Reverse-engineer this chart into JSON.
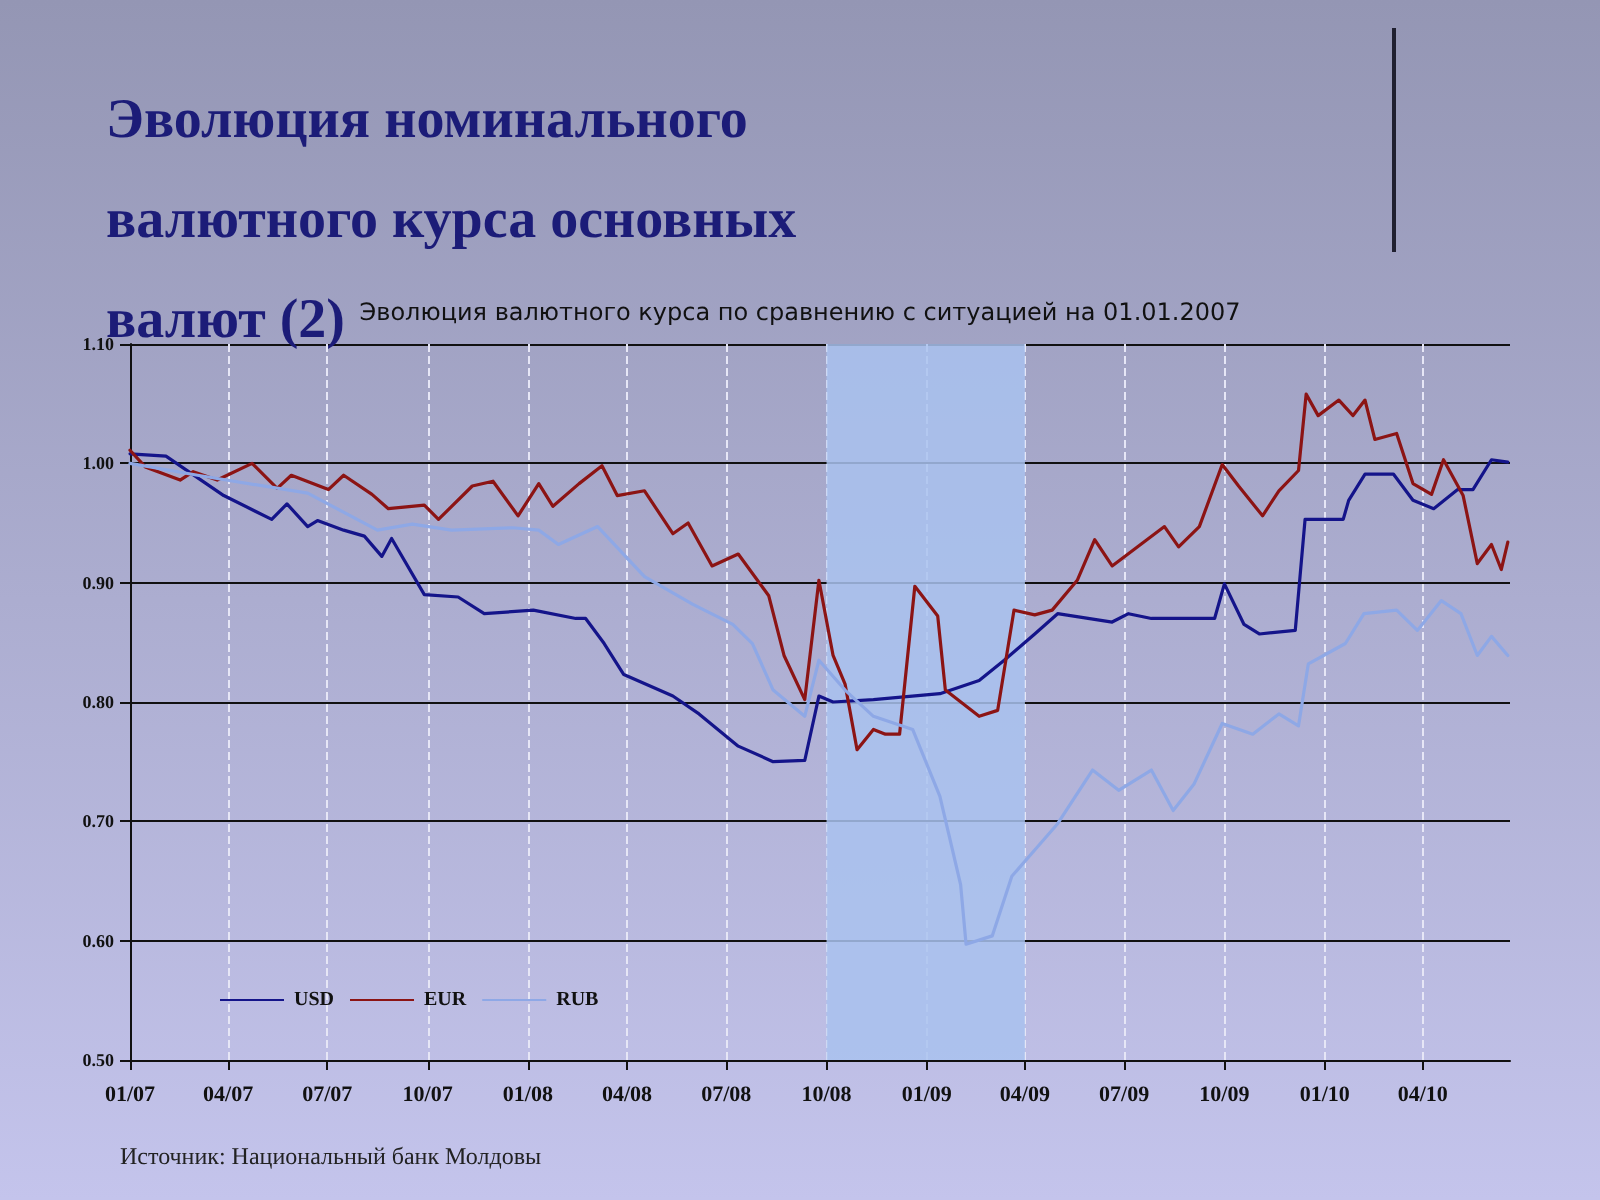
{
  "chart_data": {
    "type": "line",
    "title": "Эволюция номинального валютного курса основных валют (2)",
    "subtitle": "Эволюция валютного курса по сравнению с ситуацией на 01.01.2007",
    "annotations": [
      "Источник: Национальный банк Молдовы"
    ],
    "xlim": [
      "2007-01-01",
      "2010-06-20"
    ],
    "xticks": [
      {
        "value": "2007-01-01",
        "label": "01/07"
      },
      {
        "value": "2007-04-01",
        "label": "04/07"
      },
      {
        "value": "2007-07-01",
        "label": "07/07"
      },
      {
        "value": "2007-10-01",
        "label": "10/07"
      },
      {
        "value": "2008-01-01",
        "label": "01/08"
      },
      {
        "value": "2008-04-01",
        "label": "04/08"
      },
      {
        "value": "2008-07-01",
        "label": "07/08"
      },
      {
        "value": "2008-10-01",
        "label": "10/08"
      },
      {
        "value": "2009-01-01",
        "label": "01/09"
      },
      {
        "value": "2009-04-01",
        "label": "04/09"
      },
      {
        "value": "2009-07-01",
        "label": "07/09"
      },
      {
        "value": "2009-10-01",
        "label": "10/09"
      },
      {
        "value": "2010-01-01",
        "label": "01/10"
      },
      {
        "value": "2010-04-01",
        "label": "04/10"
      }
    ],
    "ylim": [
      0.5,
      1.1
    ],
    "yticks": [
      {
        "value": 0.5,
        "label": "0.50"
      },
      {
        "value": 0.6,
        "label": "0.60"
      },
      {
        "value": 0.7,
        "label": "0.70"
      },
      {
        "value": 0.8,
        "label": "0.80"
      },
      {
        "value": 0.9,
        "label": "0.90"
      },
      {
        "value": 1.0,
        "label": "1.00"
      },
      {
        "value": 1.1,
        "label": "1.10"
      }
    ],
    "grid": true,
    "legend": "bottom left",
    "marker": "none",
    "line_style": "solid",
    "bands": [
      {
        "axis": "x",
        "from": "2008-10-01",
        "to": "2009-04-01",
        "color": "#a9c2ee"
      }
    ],
    "series": [
      {
        "name": "USD",
        "color": "#14148a",
        "x": [
          "2007-01-01",
          "2007-02-03",
          "2007-03-28",
          "2007-05-11",
          "2007-05-25",
          "2007-06-13",
          "2007-06-22",
          "2007-07-16",
          "2007-08-04",
          "2007-08-20",
          "2007-08-29",
          "2007-09-28",
          "2007-10-29",
          "2007-11-22",
          "2008-01-06",
          "2008-02-14",
          "2008-02-23",
          "2008-03-11",
          "2008-03-29",
          "2008-05-13",
          "2008-06-06",
          "2008-07-12",
          "2008-08-13",
          "2008-09-11",
          "2008-09-24",
          "2008-10-07",
          "2008-11-13",
          "2009-01-13",
          "2009-02-18",
          "2009-03-13",
          "2009-04-10",
          "2009-05-01",
          "2009-06-20",
          "2009-07-05",
          "2009-07-26",
          "2009-09-22",
          "2009-10-01",
          "2009-10-19",
          "2009-11-02",
          "2009-12-05",
          "2009-12-14",
          "2010-01-18",
          "2010-01-23",
          "2010-02-07",
          "2010-03-05",
          "2010-03-23",
          "2010-04-11",
          "2010-05-03",
          "2010-05-17",
          "2010-06-03",
          "2010-06-18"
        ],
        "values": [
          1.008,
          1.006,
          0.973,
          0.953,
          0.966,
          0.947,
          0.952,
          0.944,
          0.939,
          0.922,
          0.937,
          0.89,
          0.888,
          0.874,
          0.877,
          0.87,
          0.87,
          0.849,
          0.823,
          0.805,
          0.79,
          0.763,
          0.75,
          0.751,
          0.805,
          0.8,
          0.802,
          0.807,
          0.818,
          0.835,
          0.857,
          0.874,
          0.867,
          0.874,
          0.87,
          0.87,
          0.899,
          0.865,
          0.857,
          0.86,
          0.953,
          0.953,
          0.969,
          0.991,
          0.991,
          0.969,
          0.962,
          0.978,
          0.978,
          1.003,
          1.001
        ]
      },
      {
        "name": "EUR",
        "color": "#8c1414",
        "x": [
          "2007-01-01",
          "2007-01-15",
          "2007-02-16",
          "2007-02-28",
          "2007-03-22",
          "2007-04-23",
          "2007-05-16",
          "2007-05-29",
          "2007-07-02",
          "2007-07-16",
          "2007-08-11",
          "2007-08-26",
          "2007-09-28",
          "2007-10-11",
          "2007-11-11",
          "2007-11-30",
          "2007-12-23",
          "2008-01-11",
          "2008-01-24",
          "2008-02-17",
          "2008-03-09",
          "2008-03-23",
          "2008-04-17",
          "2008-05-13",
          "2008-05-27",
          "2008-06-18",
          "2008-07-12",
          "2008-08-09",
          "2008-08-23",
          "2008-09-11",
          "2008-09-24",
          "2008-10-07",
          "2008-10-18",
          "2008-10-29",
          "2008-11-13",
          "2008-11-24",
          "2008-12-07",
          "2008-12-21",
          "2009-01-11",
          "2009-01-18",
          "2009-02-18",
          "2009-03-07",
          "2009-03-22",
          "2009-04-10",
          "2009-04-26",
          "2009-05-19",
          "2009-06-04",
          "2009-06-20",
          "2009-08-07",
          "2009-08-20",
          "2009-09-08",
          "2009-09-29",
          "2009-10-14",
          "2009-11-05",
          "2009-11-20",
          "2009-12-08",
          "2009-12-15",
          "2009-12-26",
          "2010-01-14",
          "2010-01-27",
          "2010-02-07",
          "2010-02-16",
          "2010-03-08",
          "2010-03-23",
          "2010-04-09",
          "2010-04-20",
          "2010-05-08",
          "2010-05-21",
          "2010-06-03",
          "2010-06-12",
          "2010-06-18"
        ],
        "values": [
          1.011,
          0.997,
          0.986,
          0.993,
          0.986,
          1.0,
          0.979,
          0.99,
          0.978,
          0.99,
          0.974,
          0.962,
          0.965,
          0.953,
          0.981,
          0.985,
          0.956,
          0.983,
          0.964,
          0.983,
          0.998,
          0.973,
          0.977,
          0.941,
          0.95,
          0.914,
          0.924,
          0.889,
          0.839,
          0.802,
          0.902,
          0.839,
          0.815,
          0.76,
          0.777,
          0.773,
          0.773,
          0.897,
          0.872,
          0.81,
          0.788,
          0.793,
          0.877,
          0.873,
          0.877,
          0.902,
          0.936,
          0.914,
          0.947,
          0.93,
          0.947,
          0.999,
          0.981,
          0.956,
          0.977,
          0.994,
          1.058,
          1.04,
          1.053,
          1.04,
          1.053,
          1.02,
          1.025,
          0.983,
          0.974,
          1.003,
          0.973,
          0.916,
          0.932,
          0.911,
          0.934
        ]
      },
      {
        "name": "RUB",
        "color": "#8ea8e6",
        "x": [
          "2007-01-01",
          "2007-03-04",
          "2007-06-13",
          "2007-08-16",
          "2007-09-17",
          "2007-10-23",
          "2007-12-18",
          "2008-01-11",
          "2008-01-29",
          "2008-03-05",
          "2008-04-17",
          "2008-05-31",
          "2008-07-07",
          "2008-07-25",
          "2008-08-13",
          "2008-09-11",
          "2008-09-24",
          "2008-10-18",
          "2008-11-13",
          "2008-12-19",
          "2009-01-13",
          "2009-02-01",
          "2009-02-06",
          "2009-03-02",
          "2009-03-20",
          "2009-04-10",
          "2009-05-01",
          "2009-06-02",
          "2009-06-26",
          "2009-07-26",
          "2009-08-15",
          "2009-09-03",
          "2009-09-29",
          "2009-10-27",
          "2009-11-20",
          "2009-12-08",
          "2009-12-17",
          "2010-01-20",
          "2010-02-06",
          "2010-03-08",
          "2010-03-27",
          "2010-04-18",
          "2010-05-06",
          "2010-05-21",
          "2010-06-03",
          "2010-06-18"
        ],
        "values": [
          1.0,
          0.99,
          0.975,
          0.944,
          0.949,
          0.944,
          0.946,
          0.944,
          0.932,
          0.947,
          0.905,
          0.882,
          0.865,
          0.849,
          0.81,
          0.788,
          0.835,
          0.81,
          0.788,
          0.777,
          0.721,
          0.647,
          0.597,
          0.604,
          0.654,
          0.676,
          0.698,
          0.743,
          0.726,
          0.743,
          0.709,
          0.731,
          0.782,
          0.773,
          0.79,
          0.78,
          0.832,
          0.849,
          0.874,
          0.877,
          0.86,
          0.885,
          0.874,
          0.839,
          0.855,
          0.839
        ]
      }
    ]
  }
}
